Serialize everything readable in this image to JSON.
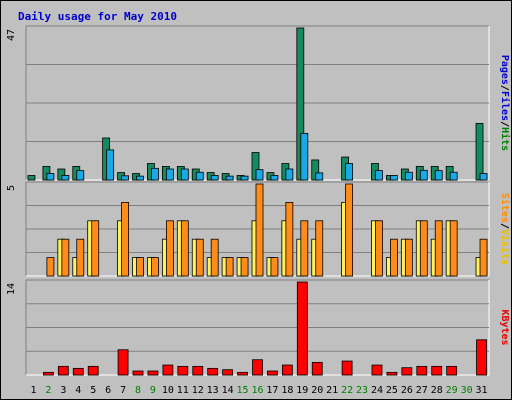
{
  "chart_data": [
    {
      "type": "bar",
      "title": "Daily usage for May 2010",
      "panel": "hits-files-pages",
      "ymax_label": "47",
      "ylim": [
        0,
        47
      ],
      "right_labels": [
        "Pages",
        "Files",
        "Hits"
      ],
      "right_colors": [
        "#0000cc",
        "#0000cc",
        "#008000"
      ],
      "categories": [
        "1",
        "2",
        "3",
        "4",
        "5",
        "6",
        "7",
        "8",
        "9",
        "10",
        "11",
        "12",
        "13",
        "14",
        "15",
        "16",
        "17",
        "18",
        "19",
        "20",
        "21",
        "22",
        "23",
        "24",
        "25",
        "26",
        "27",
        "28",
        "29",
        "30",
        "31"
      ],
      "weekend_days": [
        "2",
        "8",
        "9",
        "15",
        "16",
        "22",
        "23",
        "29",
        "30"
      ],
      "series": [
        {
          "name": "Hits",
          "color": "#168a5e",
          "values": [
            1.4,
            4.2,
            3.4,
            4.2,
            0,
            13,
            2.3,
            2,
            5.1,
            4.2,
            4.2,
            3.4,
            2.3,
            2,
            1.4,
            8.5,
            2.3,
            5.1,
            47,
            6.2,
            0,
            7.1,
            0,
            5.1,
            1.4,
            3.4,
            4.2,
            4.2,
            4.2,
            0,
            17.5
          ]
        },
        {
          "name": "Files",
          "color": "#1aa8e6",
          "values": [
            0,
            2,
            1.4,
            2.9,
            0,
            9.3,
            1.3,
            1.2,
            3.6,
            3.4,
            3.4,
            2.4,
            1.4,
            1.2,
            1.2,
            3.2,
            1.4,
            3.4,
            14.4,
            2.2,
            0,
            5.1,
            0,
            2.9,
            1.4,
            2.4,
            3,
            2.9,
            2.4,
            0,
            2
          ]
        }
      ]
    },
    {
      "type": "bar",
      "panel": "visits-sites",
      "ymax_label": "5",
      "ylim": [
        0,
        5
      ],
      "right_labels": [
        "Sites",
        "Visits"
      ],
      "right_colors": [
        "#ff8c00",
        "#e6c000"
      ],
      "categories": [
        "1",
        "2",
        "3",
        "4",
        "5",
        "6",
        "7",
        "8",
        "9",
        "10",
        "11",
        "12",
        "13",
        "14",
        "15",
        "16",
        "17",
        "18",
        "19",
        "20",
        "21",
        "22",
        "23",
        "24",
        "25",
        "26",
        "27",
        "28",
        "29",
        "30",
        "31"
      ],
      "series": [
        {
          "name": "Visits",
          "color": "#fff25e",
          "values": [
            0,
            0,
            2,
            1,
            3,
            0,
            3,
            1,
            1,
            2,
            3,
            2,
            1,
            1,
            1,
            3,
            1,
            3,
            2,
            2,
            0,
            4,
            0,
            3,
            1,
            2,
            3,
            2,
            3,
            0,
            1
          ]
        },
        {
          "name": "Sites",
          "color": "#ff8c1a",
          "values": [
            0,
            1,
            2,
            2,
            3,
            0,
            4,
            1,
            1,
            3,
            3,
            2,
            2,
            1,
            1,
            5,
            1,
            4,
            3,
            3,
            0,
            5,
            0,
            3,
            2,
            2,
            3,
            3,
            3,
            0,
            2
          ]
        }
      ]
    },
    {
      "type": "bar",
      "panel": "kbytes",
      "ymax_label": "14",
      "ylim": [
        0,
        14
      ],
      "right_labels": [
        "KBytes"
      ],
      "right_colors": [
        "#e60000"
      ],
      "categories": [
        "1",
        "2",
        "3",
        "4",
        "5",
        "6",
        "7",
        "8",
        "9",
        "10",
        "11",
        "12",
        "13",
        "14",
        "15",
        "16",
        "17",
        "18",
        "19",
        "20",
        "21",
        "22",
        "23",
        "24",
        "25",
        "26",
        "27",
        "28",
        "29",
        "30",
        "31"
      ],
      "series": [
        {
          "name": "KBytes",
          "color": "#ff0000",
          "values": [
            0,
            0.4,
            1.3,
            1,
            1.3,
            0,
            3.8,
            0.6,
            0.6,
            1.5,
            1.3,
            1.3,
            1,
            0.8,
            0.4,
            2.3,
            0.6,
            1.5,
            14,
            1.9,
            0,
            2.1,
            0,
            1.5,
            0.4,
            1.1,
            1.3,
            1.3,
            1.3,
            0,
            5.3
          ]
        }
      ]
    }
  ]
}
